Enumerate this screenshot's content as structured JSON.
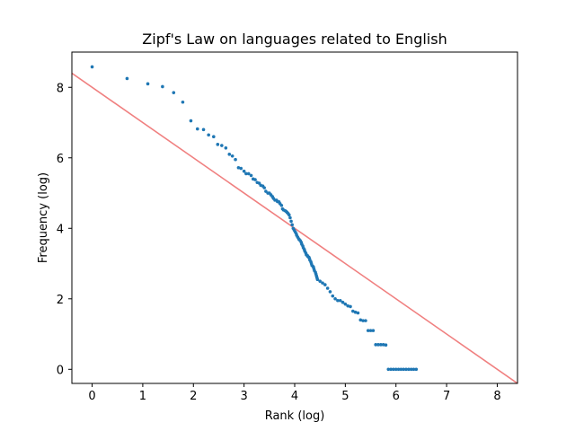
{
  "chart_data": {
    "type": "scatter",
    "title": "Zipf's Law on languages related to English",
    "xlabel": "Rank (log)",
    "ylabel": "Frequency (log)",
    "xlim": [
      -0.4,
      8.4
    ],
    "ylim": [
      -0.4,
      9.0
    ],
    "xticks": [
      0,
      1,
      2,
      3,
      4,
      5,
      6,
      7,
      8
    ],
    "yticks": [
      0,
      2,
      4,
      6,
      8
    ],
    "grid": false,
    "colors": {
      "points": "#1f77b4",
      "fit_line": "#f08080"
    },
    "fit_line": {
      "x": [
        -0.4,
        8.4
      ],
      "y": [
        8.4,
        -0.4
      ]
    },
    "series": [
      {
        "x": [
          0.0,
          0.69,
          1.1,
          1.39,
          1.61,
          1.79,
          1.95,
          2.08,
          2.2,
          2.3,
          2.4,
          2.48,
          2.56,
          2.64,
          2.71,
          2.77,
          2.83,
          2.89,
          2.94,
          3.0,
          3.04,
          3.09,
          3.14,
          3.18,
          3.22,
          3.26,
          3.3,
          3.33,
          3.37,
          3.4,
          3.43,
          3.47,
          3.5,
          3.53,
          3.56,
          3.58,
          3.61,
          3.64,
          3.66,
          3.69,
          3.71,
          3.74,
          3.76,
          3.78,
          3.81,
          3.83,
          3.85,
          3.87,
          3.89,
          3.91,
          3.93,
          3.95,
          3.97,
          3.99,
          4.01,
          4.03,
          4.04,
          4.06,
          4.08,
          4.09,
          4.11,
          4.13,
          4.14,
          4.16,
          4.17,
          4.19,
          4.2,
          4.22,
          4.23,
          4.25,
          4.26,
          4.28,
          4.29,
          4.3,
          4.32,
          4.33,
          4.34,
          4.36,
          4.37,
          4.38,
          4.39,
          4.41,
          4.42,
          4.43,
          4.44,
          4.45,
          4.5,
          4.55,
          4.6,
          4.65,
          4.7,
          4.75,
          4.8,
          4.85,
          4.9,
          4.95,
          5.0,
          5.05,
          5.1,
          5.15,
          5.2,
          5.25,
          5.3,
          5.35,
          5.4,
          5.45,
          5.5,
          5.55,
          5.6,
          5.65,
          5.7,
          5.75,
          5.8,
          5.85,
          5.9,
          5.95,
          6.0,
          6.05,
          6.1,
          6.15,
          6.2,
          6.25,
          6.3,
          6.35,
          6.4
        ],
        "y": [
          8.58,
          8.25,
          8.1,
          8.02,
          7.85,
          7.58,
          7.05,
          6.82,
          6.8,
          6.65,
          6.6,
          6.38,
          6.35,
          6.28,
          6.1,
          6.05,
          5.95,
          5.72,
          5.7,
          5.62,
          5.55,
          5.55,
          5.5,
          5.4,
          5.38,
          5.3,
          5.28,
          5.22,
          5.2,
          5.15,
          5.05,
          5.0,
          5.0,
          4.95,
          4.9,
          4.85,
          4.8,
          4.8,
          4.76,
          4.75,
          4.7,
          4.65,
          4.55,
          4.52,
          4.5,
          4.48,
          4.45,
          4.42,
          4.38,
          4.3,
          4.2,
          4.1,
          4.0,
          3.95,
          3.9,
          3.85,
          3.8,
          3.75,
          3.7,
          3.68,
          3.65,
          3.6,
          3.55,
          3.5,
          3.45,
          3.4,
          3.35,
          3.3,
          3.25,
          3.23,
          3.2,
          3.18,
          3.15,
          3.1,
          3.05,
          3.0,
          2.95,
          2.92,
          2.9,
          2.85,
          2.8,
          2.75,
          2.7,
          2.65,
          2.6,
          2.55,
          2.5,
          2.45,
          2.4,
          2.3,
          2.2,
          2.08,
          2.0,
          1.95,
          1.95,
          1.9,
          1.85,
          1.8,
          1.78,
          1.65,
          1.62,
          1.6,
          1.4,
          1.38,
          1.38,
          1.1,
          1.1,
          1.1,
          0.7,
          0.7,
          0.7,
          0.7,
          0.69,
          0.0,
          0.0,
          0.0,
          0.0,
          0.0,
          0.0,
          0.0,
          0.0,
          0.0,
          0.0,
          0.0,
          0.0
        ]
      }
    ]
  }
}
